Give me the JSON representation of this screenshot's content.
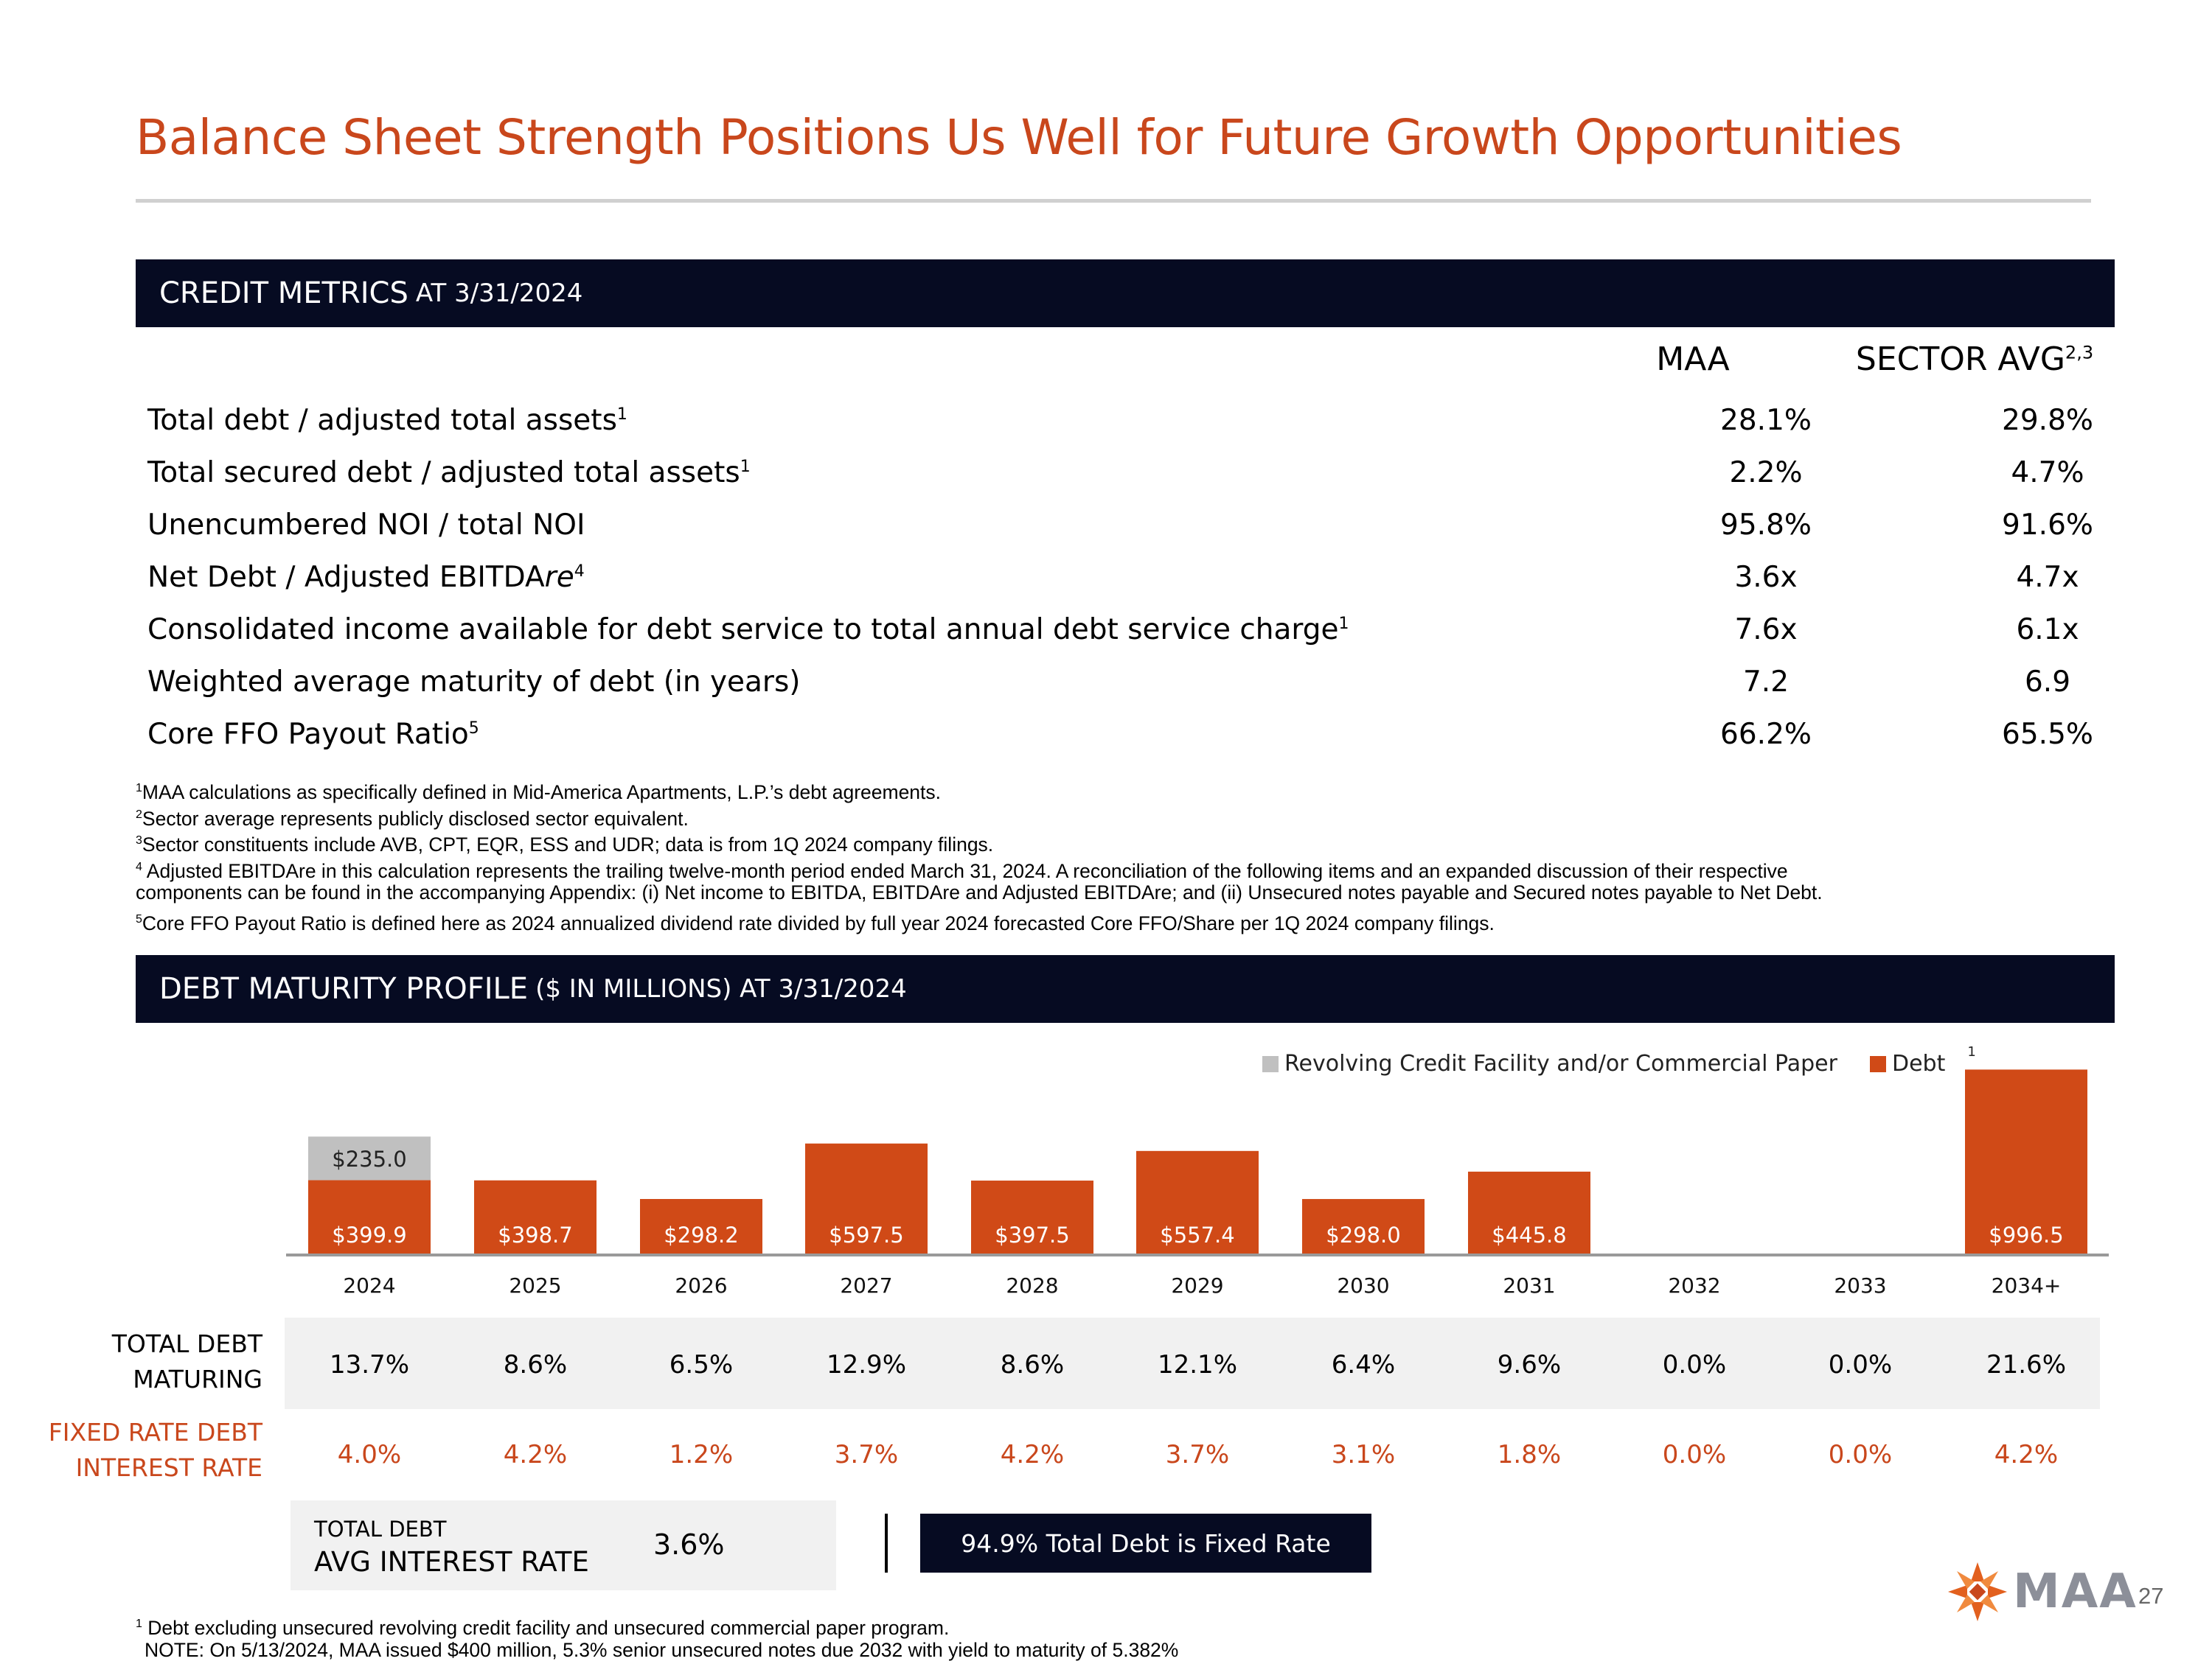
{
  "title": "Balance Sheet Strength Positions Us Well for Future Growth Opportunities",
  "credit_section": {
    "heading_main": "CREDIT METRICS",
    "heading_sub": "AT 3/31/2024",
    "col_maa": "MAA",
    "col_sector": "SECTOR AVG",
    "col_sector_sup": "2,3",
    "rows": [
      {
        "label": "Total debt / adjusted total assets",
        "label_em": "",
        "sup": "1",
        "maa": "28.1%",
        "sector": "29.8%"
      },
      {
        "label": "Total secured debt / adjusted total assets",
        "label_em": "",
        "sup": "1",
        "maa": "2.2%",
        "sector": "4.7%"
      },
      {
        "label": "Unencumbered NOI / total NOI",
        "label_em": "",
        "sup": "",
        "maa": "95.8%",
        "sector": "91.6%"
      },
      {
        "label": "Net Debt / Adjusted EBITDA",
        "label_em": "re",
        "sup": "4",
        "maa": "3.6x",
        "sector": "4.7x"
      },
      {
        "label": "Consolidated income available for debt service to total annual debt service charge",
        "label_em": "",
        "sup": "1",
        "maa": "7.6x",
        "sector": "6.1x"
      },
      {
        "label": "Weighted average maturity of debt (in years)",
        "label_em": "",
        "sup": "",
        "maa": "7.2",
        "sector": "6.9"
      },
      {
        "label": "Core FFO Payout Ratio",
        "label_em": "",
        "sup": "5",
        "maa": "66.2%",
        "sector": "65.5%"
      }
    ],
    "footnotes": [
      {
        "sup": "1",
        "text": "MAA calculations as specifically defined in Mid-America Apartments, L.P.’s debt agreements."
      },
      {
        "sup": "2",
        "text": "Sector average represents publicly disclosed sector equivalent."
      },
      {
        "sup": "3",
        "text": "Sector constituents include AVB, CPT, EQR, ESS and UDR; data is from 1Q 2024 company filings."
      },
      {
        "sup": "4",
        "text": " Adjusted EBITDAre in this calculation represents the trailing twelve-month period ended March 31, 2024. A reconciliation of the following items and an expanded discussion of their respective"
      },
      {
        "sup": "",
        "text": "components can be found in the accompanying Appendix: (i) Net income to EBITDA, EBITDAre and Adjusted EBITDAre; and (ii) Unsecured notes payable and Secured notes payable to Net Debt."
      },
      {
        "sup": "5",
        "text": "Core FFO Payout Ratio is defined here as 2024 annualized dividend rate divided by full year 2024 forecasted Core FFO/Share per 1Q 2024 company filings."
      }
    ]
  },
  "debt_section": {
    "heading_main": "DEBT MATURITY PROFILE",
    "heading_sub": "($ IN MILLIONS) AT 3/31/2024",
    "total_debt_label": "TOTAL DEBT MATURING",
    "total_debt_label_l1": "TOTAL DEBT",
    "total_debt_label_l2": "MATURING",
    "fixed_rate_label_l1": "FIXED RATE DEBT",
    "fixed_rate_label_l2": "INTEREST RATE",
    "total_debt_maturing": [
      "13.7%",
      "8.6%",
      "6.5%",
      "12.9%",
      "8.6%",
      "12.1%",
      "6.4%",
      "9.6%",
      "0.0%",
      "0.0%",
      "21.6%"
    ],
    "fixed_rate_interest": [
      "4.0%",
      "4.2%",
      "1.2%",
      "3.7%",
      "4.2%",
      "3.7%",
      "3.1%",
      "1.8%",
      "0.0%",
      "0.0%",
      "4.2%"
    ],
    "avg_label_l1": "TOTAL DEBT",
    "avg_label_l2": "AVG INTEREST RATE",
    "avg_value": "3.6%",
    "fixed_box": "94.9% Total Debt is Fixed Rate",
    "footnote_sup": "1",
    "footnote": "Debt excluding unsecured revolving credit facility and unsecured commercial paper program.",
    "note": "NOTE: On 5/13/2024, MAA issued $400 million, 5.3% senior unsecured notes due 2032 with yield to maturity of 5.382%"
  },
  "chart_data": {
    "type": "bar",
    "stacked": true,
    "categories": [
      "2024",
      "2025",
      "2026",
      "2027",
      "2028",
      "2029",
      "2030",
      "2031",
      "2032",
      "2033",
      "2034+"
    ],
    "series": [
      {
        "name": "Debt",
        "sup": "1",
        "color": "#D04A17",
        "values": [
          399.9,
          398.7,
          298.2,
          597.5,
          397.5,
          557.4,
          298.0,
          445.8,
          0,
          0,
          996.5
        ],
        "labels": [
          "$399.9",
          "$398.7",
          "$298.2",
          "$597.5",
          "$397.5",
          "$557.4",
          "$298.0",
          "$445.8",
          "",
          "",
          "$996.5"
        ]
      },
      {
        "name": "Revolving Credit Facility and/or Commercial Paper",
        "color": "#C0C0C0",
        "values": [
          235.0,
          0,
          0,
          0,
          0,
          0,
          0,
          0,
          0,
          0,
          0
        ],
        "labels": [
          "$235.0",
          "",
          "",
          "",
          "",
          "",
          "",
          "",
          "",
          "",
          ""
        ]
      }
    ],
    "legend_position": "top-right"
  },
  "logo": {
    "text": "MAA",
    "color": "#E2601E"
  },
  "page_number": "27"
}
